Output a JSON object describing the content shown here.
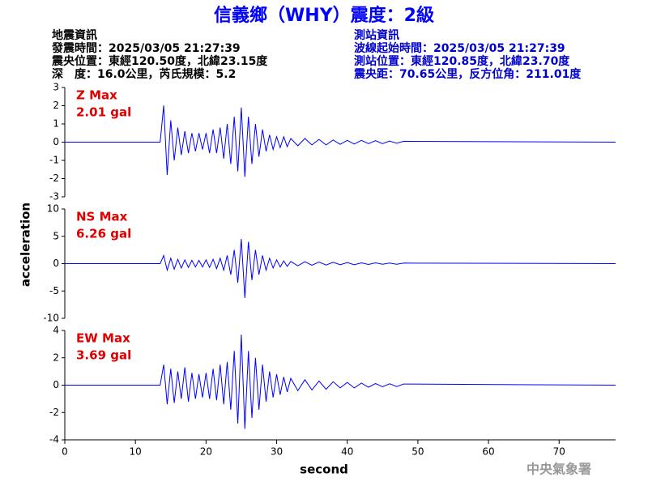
{
  "header": {
    "title": "信義鄉（WHY）震度：2級",
    "left_lines": [
      "地震資訊",
      "發震時間：2025/03/05 21:27:39",
      "震央位置：東經120.50度，北緯23.15度",
      "深　度：16.0公里，芮氏規模：5.2"
    ],
    "right_lines": [
      "測站資訊",
      "波線起始時間：2025/03/05 21:27:39",
      "測站位置：東經120.85度，北緯23.70度",
      "震央距：70.65公里，反方位角：211.01度"
    ],
    "watermark": "中央氣象署"
  },
  "chart_data": [
    {
      "type": "line",
      "annotation": [
        "Z Max",
        "2.01 gal"
      ],
      "xlim": [
        0,
        78
      ],
      "ylim": [
        -3,
        3
      ],
      "yticks": [
        -3,
        -2,
        -1,
        0,
        1,
        2,
        3
      ],
      "series": [
        {
          "name": "Z",
          "color": "#0000ff",
          "x": [
            0,
            13.5,
            14,
            14.5,
            15,
            15.5,
            16,
            16.5,
            17,
            17.5,
            18,
            18.5,
            19,
            19.5,
            20,
            20.5,
            21,
            21.5,
            22,
            22.5,
            23,
            23.5,
            24,
            24.5,
            25,
            25.5,
            26,
            26.5,
            27,
            27.5,
            28,
            28.5,
            29,
            29.5,
            30,
            30.5,
            31,
            31.5,
            32,
            33,
            34,
            35,
            36,
            37,
            38,
            39,
            40,
            41,
            42,
            43,
            44,
            45,
            46,
            47,
            48,
            78
          ],
          "values": [
            0,
            0,
            2.01,
            -1.8,
            1.2,
            -1.0,
            0.8,
            -0.7,
            0.6,
            -0.6,
            0.5,
            -0.5,
            0.5,
            -0.4,
            0.5,
            -0.6,
            0.7,
            -0.6,
            0.8,
            -0.9,
            1.0,
            -1.2,
            1.4,
            -1.6,
            1.9,
            -1.9,
            1.4,
            -1.2,
            1.0,
            -0.8,
            0.7,
            -0.5,
            0.4,
            -0.4,
            0.3,
            -0.3,
            0.3,
            -0.25,
            0.2,
            -0.2,
            0.2,
            -0.15,
            0.15,
            -0.15,
            0.12,
            -0.12,
            0.1,
            -0.1,
            0.1,
            -0.08,
            0.08,
            -0.08,
            0.06,
            -0.06,
            0.05,
            0
          ]
        }
      ]
    },
    {
      "type": "line",
      "annotation": [
        "NS Max",
        "6.26 gal"
      ],
      "ylabel": "acceleration",
      "xlim": [
        0,
        78
      ],
      "ylim": [
        -10,
        10
      ],
      "yticks": [
        -10,
        -5,
        0,
        5,
        10
      ],
      "series": [
        {
          "name": "NS",
          "color": "#0000ff",
          "x": [
            0,
            13.5,
            14,
            14.5,
            15,
            15.5,
            16,
            16.5,
            17,
            17.5,
            18,
            18.5,
            19,
            19.5,
            20,
            20.5,
            21,
            21.5,
            22,
            22.5,
            23,
            23.5,
            24,
            24.5,
            25,
            25.5,
            26,
            26.5,
            27,
            27.5,
            28,
            28.5,
            29,
            29.5,
            30,
            30.5,
            31,
            31.5,
            32,
            33,
            34,
            35,
            36,
            37,
            38,
            39,
            40,
            41,
            42,
            43,
            44,
            45,
            46,
            47,
            48,
            78
          ],
          "values": [
            0,
            0,
            1.5,
            -1.2,
            1.0,
            -1.0,
            0.8,
            -0.8,
            0.7,
            -0.7,
            0.6,
            -0.6,
            0.6,
            -0.6,
            0.7,
            -0.7,
            0.8,
            -0.9,
            1.0,
            -1.2,
            1.5,
            -2.0,
            2.5,
            -3.5,
            4.5,
            -6.26,
            4.0,
            -3.0,
            2.5,
            -2.0,
            1.5,
            -1.2,
            1.0,
            -0.8,
            0.7,
            -0.6,
            0.5,
            -0.5,
            0.4,
            -0.4,
            0.35,
            -0.3,
            0.3,
            -0.25,
            0.25,
            -0.2,
            0.2,
            -0.2,
            0.15,
            -0.15,
            0.15,
            -0.12,
            0.1,
            -0.1,
            0.1,
            0
          ]
        }
      ]
    },
    {
      "type": "line",
      "annotation": [
        "EW Max",
        "3.69 gal"
      ],
      "xlabel": "second",
      "xlim": [
        0,
        78
      ],
      "xticks": [
        0,
        10,
        20,
        30,
        40,
        50,
        60,
        70
      ],
      "ylim": [
        -4,
        4
      ],
      "yticks": [
        -4,
        -2,
        0,
        2,
        4
      ],
      "series": [
        {
          "name": "EW",
          "color": "#0000ff",
          "x": [
            0,
            13.5,
            14,
            14.5,
            15,
            15.5,
            16,
            16.5,
            17,
            17.5,
            18,
            18.5,
            19,
            19.5,
            20,
            20.5,
            21,
            21.5,
            22,
            22.5,
            23,
            23.5,
            24,
            24.5,
            25,
            25.5,
            26,
            26.5,
            27,
            27.5,
            28,
            28.5,
            29,
            29.5,
            30,
            30.5,
            31,
            31.5,
            32,
            33,
            34,
            35,
            36,
            37,
            38,
            39,
            40,
            41,
            42,
            43,
            44,
            45,
            46,
            47,
            48,
            78
          ],
          "values": [
            0,
            0,
            1.5,
            -1.4,
            1.2,
            -1.3,
            1.0,
            -1.0,
            1.3,
            -1.2,
            0.9,
            -1.0,
            0.8,
            -0.9,
            0.9,
            -1.0,
            1.2,
            -1.1,
            1.5,
            -1.4,
            1.7,
            -1.8,
            2.5,
            -2.8,
            3.69,
            -3.2,
            2.5,
            -2.4,
            2.0,
            -1.8,
            1.5,
            -1.2,
            1.0,
            -0.9,
            0.8,
            -0.7,
            0.6,
            -0.5,
            0.5,
            -0.4,
            0.4,
            -0.35,
            0.3,
            -0.3,
            0.25,
            -0.2,
            0.2,
            -0.2,
            0.15,
            -0.15,
            0.12,
            -0.12,
            0.1,
            -0.1,
            0.08,
            0
          ]
        }
      ]
    }
  ]
}
